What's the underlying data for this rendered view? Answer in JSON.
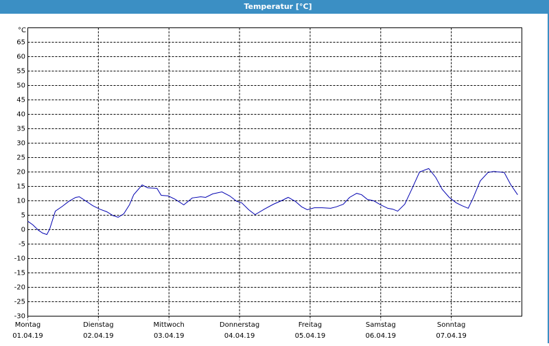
{
  "chart_data": {
    "type": "line",
    "title": "Temperatur [°C]",
    "y_label": "°C",
    "xlim": [
      0,
      7
    ],
    "ylim": [
      -30,
      70
    ],
    "yticks": [
      -30,
      -25,
      -20,
      -15,
      -10,
      -5,
      0,
      5,
      10,
      15,
      20,
      25,
      30,
      35,
      40,
      45,
      50,
      55,
      60,
      65
    ],
    "xticks": [
      {
        "value": 0,
        "label": "01.04.19"
      },
      {
        "value": 1,
        "label": "02.04.19"
      },
      {
        "value": 2,
        "label": "03.04.19"
      },
      {
        "value": 3,
        "label": "04.04.19"
      },
      {
        "value": 4,
        "label": "05.04.19"
      },
      {
        "value": 5,
        "label": "06.04.19"
      },
      {
        "value": 6,
        "label": "07.04.19"
      }
    ],
    "xtick_weekdays": [
      "Montag",
      "Dienstag",
      "Mittwoch",
      "Donnerstag",
      "Freitag",
      "Samstag",
      "Sonntag"
    ],
    "grid": true,
    "series": [
      {
        "color": "#0000b0",
        "x": [
          0,
          0.07,
          0.15,
          0.21,
          0.27,
          0.31,
          0.39,
          0.49,
          0.58,
          0.68,
          0.73,
          0.83,
          0.92,
          1.02,
          1.12,
          1.21,
          1.28,
          1.36,
          1.44,
          1.5,
          1.62,
          1.7,
          1.83,
          1.89,
          1.99,
          2.09,
          2.21,
          2.33,
          2.45,
          2.52,
          2.62,
          2.75,
          2.86,
          2.96,
          3.03,
          3.13,
          3.22,
          3.35,
          3.48,
          3.59,
          3.69,
          3.79,
          3.88,
          3.96,
          4.06,
          4.17,
          4.29,
          4.37,
          4.47,
          4.56,
          4.66,
          4.73,
          4.81,
          4.9,
          5.0,
          5.1,
          5.17,
          5.24,
          5.34,
          5.44,
          5.55,
          5.68,
          5.78,
          5.87,
          5.97,
          6.07,
          6.15,
          6.24,
          6.31,
          6.41,
          6.52,
          6.6,
          6.75,
          6.84,
          6.94
        ],
        "values": [
          2.9,
          1.7,
          -0.2,
          -1.2,
          -1.7,
          0.2,
          6.4,
          8.1,
          9.8,
          11.2,
          11.4,
          9.8,
          8.3,
          7.1,
          6.2,
          4.8,
          4.3,
          5.5,
          8.6,
          12.1,
          15.5,
          14.5,
          14.3,
          11.9,
          11.7,
          10.5,
          8.6,
          11,
          11.4,
          11.2,
          12.4,
          13.1,
          11.7,
          9.8,
          9.3,
          6.9,
          5.2,
          7.1,
          8.8,
          10,
          11.2,
          9.8,
          7.9,
          6.9,
          7.6,
          7.6,
          7.4,
          7.9,
          8.8,
          11.2,
          12.6,
          12.1,
          10.5,
          10,
          8.6,
          7.4,
          7.1,
          6.4,
          8.8,
          14,
          20,
          21.2,
          18.1,
          14,
          11.2,
          9.3,
          8.3,
          7.4,
          11,
          16.9,
          19.8,
          20.2,
          19.8,
          15.7,
          12.1
        ]
      }
    ]
  }
}
